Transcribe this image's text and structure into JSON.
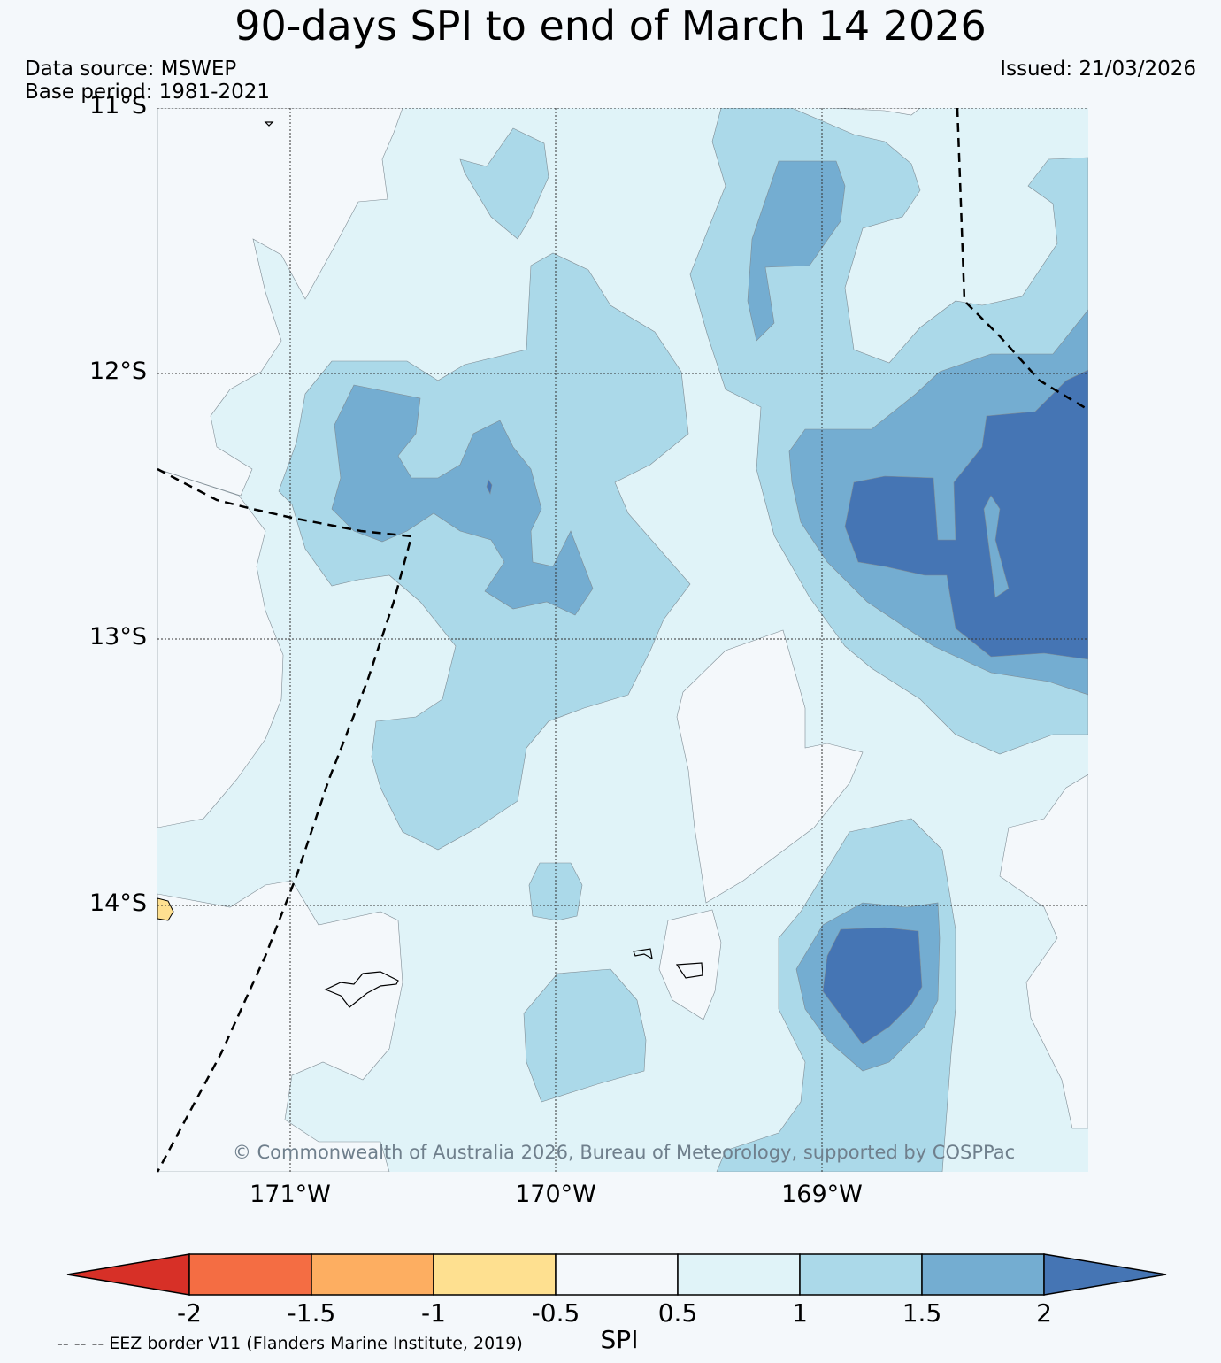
{
  "title": "90-days SPI to end of March 14 2026",
  "data_source": "Data source: MSWEP",
  "base_period": "Base period: 1981-2021",
  "issued": "Issued: 21/03/2026",
  "lat_labels": [
    "11°S",
    "12°S",
    "13°S",
    "14°S"
  ],
  "lon_labels": [
    "171°W",
    "170°W",
    "169°W"
  ],
  "copyright": "© Commonwealth of Australia 2026, Bureau of Meteorology, supported by COSPPac",
  "colorbar": {
    "label": "SPI",
    "ticks": [
      "-2",
      "-1.5",
      "-1",
      "-0.5",
      "0.5",
      "1",
      "1.5",
      "2"
    ],
    "colors": {
      "below_-2": "#d73027",
      "-2_-1.5": "#f46d43",
      "-1.5_-1": "#fdae61",
      "-1_-0.5": "#fee090",
      "-0.5_0.5": "#f4f8fb",
      "0.5_1": "#e0f3f8",
      "1_1.5": "#abd9e9",
      "1.5_2": "#74add1",
      "above_2": "#4575b4"
    }
  },
  "legend_note": "-- -- -- EEZ border V11 (Flanders Marine Institute, 2019)"
}
